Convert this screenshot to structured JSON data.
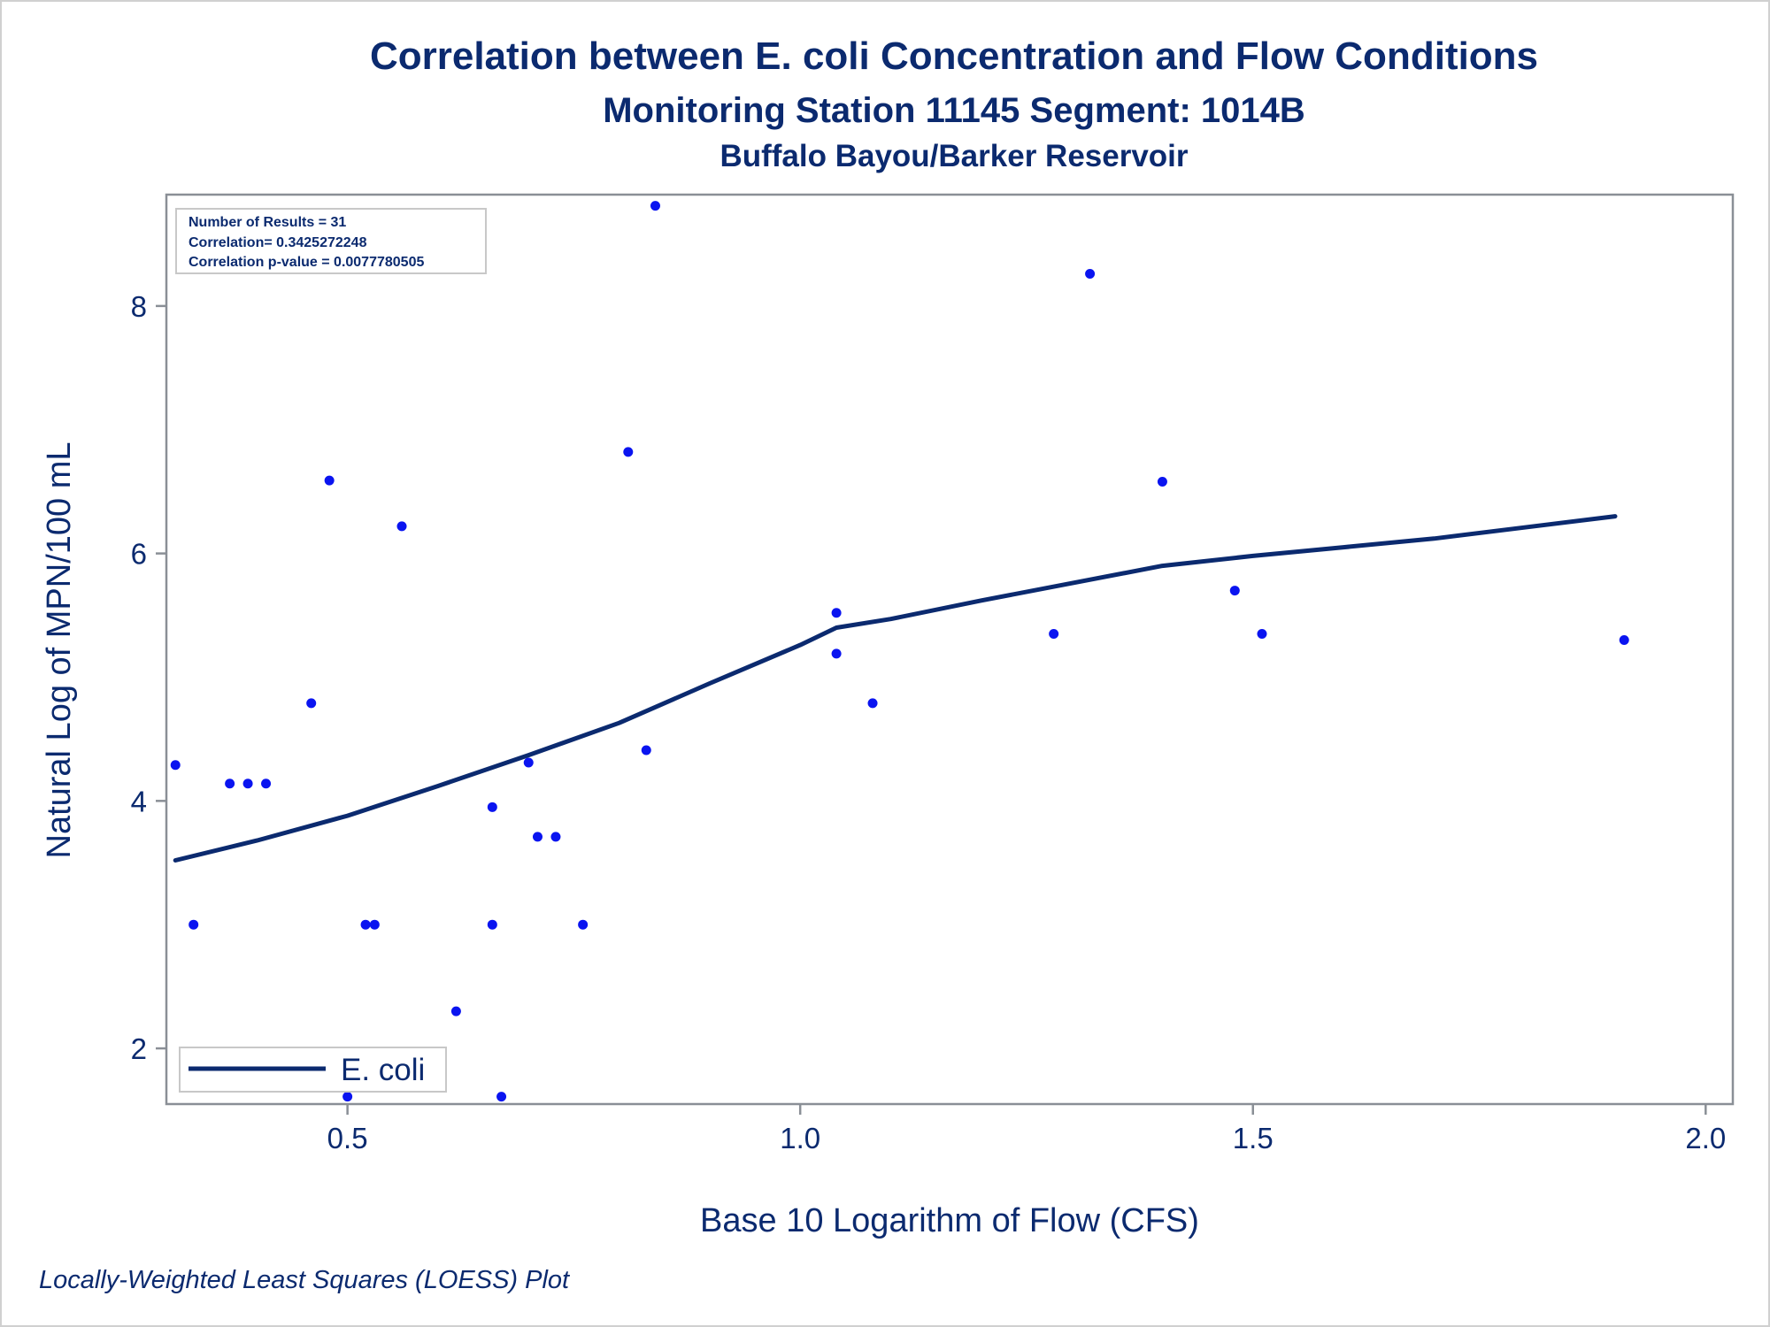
{
  "chart_data": {
    "type": "scatter",
    "title": "Correlation between E. coli Concentration and Flow Conditions",
    "subtitle": "Monitoring Station 11145 Segment: 1014B",
    "subtitle2": "Buffalo Bayou/Barker Reservoir",
    "xlabel": "Base 10 Logarithm of Flow (CFS)",
    "ylabel": "Natural Log of MPN/100 mL",
    "footnote": "Locally-Weighted Least Squares (LOESS) Plot",
    "xlim": [
      0.3,
      2.03
    ],
    "ylim": [
      1.55,
      8.9
    ],
    "x_ticks": [
      0.5,
      1.0,
      1.5,
      2.0
    ],
    "x_tick_labels": [
      "0.5",
      "1.0",
      "1.5",
      "2.0"
    ],
    "y_ticks": [
      2,
      4,
      6,
      8
    ],
    "y_tick_labels": [
      "2",
      "4",
      "6",
      "8"
    ],
    "grid": false,
    "stats": [
      "Number of Results = 31",
      "Correlation= 0.3425272248",
      "Correlation p-value = 0.0077780505"
    ],
    "legend": {
      "position": "bottom-left",
      "label": "E. coli"
    },
    "colors": {
      "points": "#0a14f0",
      "line": "#0b2a6f",
      "text": "#0b2a6f",
      "axis": "#8a8f96"
    },
    "points": [
      {
        "x": 0.31,
        "y": 4.29
      },
      {
        "x": 0.33,
        "y": 3.0
      },
      {
        "x": 0.37,
        "y": 4.14
      },
      {
        "x": 0.39,
        "y": 4.14
      },
      {
        "x": 0.41,
        "y": 4.14
      },
      {
        "x": 0.46,
        "y": 4.79
      },
      {
        "x": 0.48,
        "y": 6.59
      },
      {
        "x": 0.5,
        "y": 1.61
      },
      {
        "x": 0.52,
        "y": 3.0
      },
      {
        "x": 0.53,
        "y": 3.0
      },
      {
        "x": 0.56,
        "y": 6.22
      },
      {
        "x": 0.62,
        "y": 2.3
      },
      {
        "x": 0.66,
        "y": 3.95
      },
      {
        "x": 0.66,
        "y": 3.0
      },
      {
        "x": 0.67,
        "y": 1.61
      },
      {
        "x": 0.7,
        "y": 4.31
      },
      {
        "x": 0.71,
        "y": 3.71
      },
      {
        "x": 0.73,
        "y": 3.71
      },
      {
        "x": 0.76,
        "y": 3.0
      },
      {
        "x": 0.81,
        "y": 6.82
      },
      {
        "x": 0.83,
        "y": 4.41
      },
      {
        "x": 0.84,
        "y": 8.81
      },
      {
        "x": 1.04,
        "y": 5.52
      },
      {
        "x": 1.04,
        "y": 5.19
      },
      {
        "x": 1.08,
        "y": 4.79
      },
      {
        "x": 1.28,
        "y": 5.35
      },
      {
        "x": 1.32,
        "y": 8.26
      },
      {
        "x": 1.4,
        "y": 6.58
      },
      {
        "x": 1.48,
        "y": 5.7
      },
      {
        "x": 1.51,
        "y": 5.35
      },
      {
        "x": 1.91,
        "y": 5.3
      }
    ],
    "loess": [
      {
        "x": 0.31,
        "y": 3.52
      },
      {
        "x": 0.4,
        "y": 3.68
      },
      {
        "x": 0.5,
        "y": 3.88
      },
      {
        "x": 0.6,
        "y": 4.12
      },
      {
        "x": 0.7,
        "y": 4.37
      },
      {
        "x": 0.8,
        "y": 4.63
      },
      {
        "x": 0.9,
        "y": 4.95
      },
      {
        "x": 1.0,
        "y": 5.26
      },
      {
        "x": 1.04,
        "y": 5.4
      },
      {
        "x": 1.1,
        "y": 5.47
      },
      {
        "x": 1.2,
        "y": 5.62
      },
      {
        "x": 1.3,
        "y": 5.76
      },
      {
        "x": 1.4,
        "y": 5.9
      },
      {
        "x": 1.5,
        "y": 5.98
      },
      {
        "x": 1.6,
        "y": 6.05
      },
      {
        "x": 1.7,
        "y": 6.12
      },
      {
        "x": 1.8,
        "y": 6.21
      },
      {
        "x": 1.9,
        "y": 6.3
      }
    ]
  }
}
